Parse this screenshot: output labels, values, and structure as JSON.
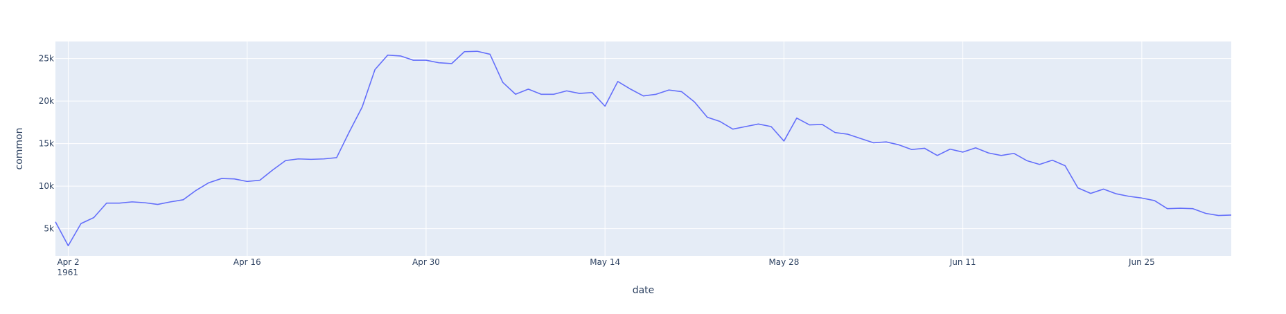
{
  "chart_data": {
    "type": "line",
    "xlabel": "date",
    "ylabel": "common",
    "x_range": [
      "1961-04-01",
      "1961-07-02"
    ],
    "ylim": [
      1800,
      27000
    ],
    "y_ticks": [
      5000,
      10000,
      15000,
      20000,
      25000
    ],
    "y_tick_labels": [
      "5k",
      "10k",
      "15k",
      "20k",
      "25k"
    ],
    "x_ticks": [
      {
        "date": "1961-04-02",
        "label": "Apr 2",
        "sublabel": "1961"
      },
      {
        "date": "1961-04-16",
        "label": "Apr 16"
      },
      {
        "date": "1961-04-30",
        "label": "Apr 30"
      },
      {
        "date": "1961-05-14",
        "label": "May 14"
      },
      {
        "date": "1961-05-28",
        "label": "May 28"
      },
      {
        "date": "1961-06-11",
        "label": "Jun 11"
      },
      {
        "date": "1961-06-25",
        "label": "Jun 25"
      }
    ],
    "grid": true,
    "legend": "none",
    "colors": {
      "line": "#636efa",
      "plot_bg": "#e5ecf6",
      "grid": "#ffffff",
      "text": "#2a3f5f"
    },
    "series": [
      {
        "x": [
          "1961-04-01",
          "1961-04-02",
          "1961-04-03",
          "1961-04-04",
          "1961-04-05",
          "1961-04-06",
          "1961-04-07",
          "1961-04-08",
          "1961-04-09",
          "1961-04-10",
          "1961-04-11",
          "1961-04-12",
          "1961-04-13",
          "1961-04-14",
          "1961-04-15",
          "1961-04-16",
          "1961-04-17",
          "1961-04-18",
          "1961-04-19",
          "1961-04-20",
          "1961-04-21",
          "1961-04-22",
          "1961-04-23",
          "1961-04-24",
          "1961-04-25",
          "1961-04-26",
          "1961-04-27",
          "1961-04-28",
          "1961-04-29",
          "1961-04-30",
          "1961-05-01",
          "1961-05-02",
          "1961-05-03",
          "1961-05-04",
          "1961-05-05",
          "1961-05-06",
          "1961-05-07",
          "1961-05-08",
          "1961-05-09",
          "1961-05-10",
          "1961-05-11",
          "1961-05-12",
          "1961-05-13",
          "1961-05-14",
          "1961-05-15",
          "1961-05-16",
          "1961-05-17",
          "1961-05-18",
          "1961-05-19",
          "1961-05-20",
          "1961-05-21",
          "1961-05-22",
          "1961-05-23",
          "1961-05-24",
          "1961-05-25",
          "1961-05-26",
          "1961-05-27",
          "1961-05-28",
          "1961-05-29",
          "1961-05-30",
          "1961-05-31",
          "1961-06-01",
          "1961-06-02",
          "1961-06-03",
          "1961-06-04",
          "1961-06-05",
          "1961-06-06",
          "1961-06-07",
          "1961-06-08",
          "1961-06-09",
          "1961-06-10",
          "1961-06-11",
          "1961-06-12",
          "1961-06-13",
          "1961-06-14",
          "1961-06-15",
          "1961-06-16",
          "1961-06-17",
          "1961-06-18",
          "1961-06-19",
          "1961-06-20",
          "1961-06-21",
          "1961-06-22",
          "1961-06-23",
          "1961-06-24",
          "1961-06-25",
          "1961-06-26",
          "1961-06-27",
          "1961-06-28",
          "1961-06-29",
          "1961-06-30",
          "1961-07-01",
          "1961-07-02"
        ],
        "y": [
          5800,
          3000,
          5600,
          6300,
          8000,
          8000,
          8150,
          8050,
          7850,
          8150,
          8400,
          9500,
          10400,
          10900,
          10850,
          10550,
          10700,
          11900,
          13000,
          13200,
          13150,
          13200,
          13350,
          16400,
          19300,
          23700,
          25400,
          25300,
          24800,
          24800,
          24500,
          24400,
          25800,
          25850,
          25500,
          22200,
          20800,
          21400,
          20800,
          20800,
          21200,
          20900,
          21000,
          19400,
          22300,
          21400,
          20600,
          20800,
          21300,
          21100,
          19900,
          18100,
          17600,
          16700,
          17000,
          17300,
          17000,
          15300,
          18000,
          17200,
          17250,
          16300,
          16100,
          15600,
          15100,
          15200,
          14850,
          14300,
          14450,
          13600,
          14350,
          14000,
          14500,
          13900,
          13600,
          13850,
          13000,
          12550,
          13050,
          12400,
          9800,
          9150,
          9650,
          9100,
          8800,
          8600,
          8300,
          7350,
          7400,
          7350,
          6800,
          6550,
          6600
        ]
      }
    ]
  }
}
